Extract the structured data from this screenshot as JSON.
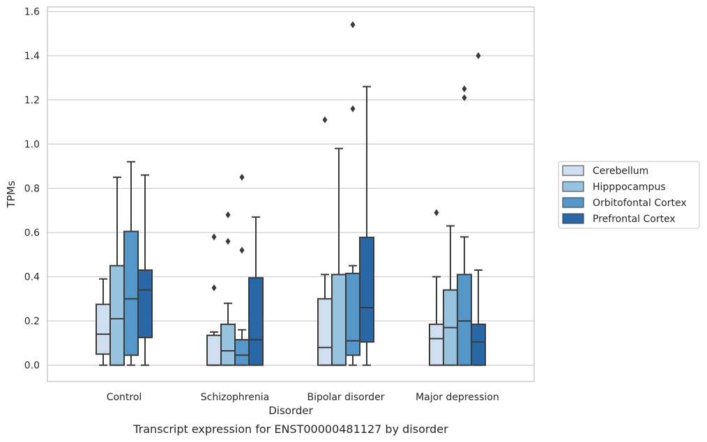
{
  "chart_data": {
    "type": "box",
    "title": "",
    "caption": "Transcript expression for ENST00000481127 by disorder",
    "xlabel": "Disorder",
    "ylabel": "TPMs",
    "ylim": [
      -0.075,
      1.62
    ],
    "yticks": [
      "0.0",
      "0.2",
      "0.4",
      "0.6",
      "0.8",
      "1.0",
      "1.2",
      "1.4",
      "1.6"
    ],
    "grid": "horizontal",
    "legend_position": "right",
    "categories": [
      "Control",
      "Schizophrenia",
      "Bipolar disorder",
      "Major depression"
    ],
    "series": [
      {
        "name": "Cerebellum",
        "color": "#d0dff0",
        "boxes": [
          {
            "whisker_low": 0.0,
            "q1": 0.05,
            "median": 0.14,
            "q3": 0.275,
            "whisker_high": 0.39,
            "outliers": []
          },
          {
            "whisker_low": 0.0,
            "q1": 0.0,
            "median": 0.0,
            "q3": 0.135,
            "whisker_high": 0.15,
            "outliers": [
              0.35,
              0.58
            ]
          },
          {
            "whisker_low": 0.0,
            "q1": 0.0,
            "median": 0.08,
            "q3": 0.3,
            "whisker_high": 0.41,
            "outliers": [
              1.11
            ]
          },
          {
            "whisker_low": 0.0,
            "q1": 0.0,
            "median": 0.12,
            "q3": 0.185,
            "whisker_high": 0.4,
            "outliers": [
              0.69
            ]
          }
        ]
      },
      {
        "name": "Hipppocampus",
        "color": "#97c3df",
        "boxes": [
          {
            "whisker_low": 0.0,
            "q1": 0.0,
            "median": 0.21,
            "q3": 0.45,
            "whisker_high": 0.85,
            "outliers": []
          },
          {
            "whisker_low": 0.0,
            "q1": 0.0,
            "median": 0.065,
            "q3": 0.185,
            "whisker_high": 0.28,
            "outliers": [
              0.56,
              0.68
            ]
          },
          {
            "whisker_low": 0.0,
            "q1": 0.0,
            "median": 0.0,
            "q3": 0.41,
            "whisker_high": 0.98,
            "outliers": []
          },
          {
            "whisker_low": 0.0,
            "q1": 0.0,
            "median": 0.17,
            "q3": 0.34,
            "whisker_high": 0.63,
            "outliers": []
          }
        ]
      },
      {
        "name": "Orbitofontal Cortex",
        "color": "#5597c8",
        "boxes": [
          {
            "whisker_low": 0.0,
            "q1": 0.045,
            "median": 0.3,
            "q3": 0.605,
            "whisker_high": 0.92,
            "outliers": []
          },
          {
            "whisker_low": 0.0,
            "q1": 0.0,
            "median": 0.045,
            "q3": 0.115,
            "whisker_high": 0.16,
            "outliers": [
              0.52,
              0.85
            ]
          },
          {
            "whisker_low": 0.0,
            "q1": 0.045,
            "median": 0.11,
            "q3": 0.415,
            "whisker_high": 0.45,
            "outliers": [
              1.16,
              1.54
            ]
          },
          {
            "whisker_low": 0.0,
            "q1": 0.0,
            "median": 0.2,
            "q3": 0.41,
            "whisker_high": 0.58,
            "outliers": [
              1.21,
              1.25
            ]
          }
        ]
      },
      {
        "name": "Prefrontal Cortex",
        "color": "#2a67a6",
        "boxes": [
          {
            "whisker_low": 0.0,
            "q1": 0.125,
            "median": 0.34,
            "q3": 0.43,
            "whisker_high": 0.86,
            "outliers": []
          },
          {
            "whisker_low": 0.0,
            "q1": 0.0,
            "median": 0.115,
            "q3": 0.395,
            "whisker_high": 0.67,
            "outliers": []
          },
          {
            "whisker_low": 0.0,
            "q1": 0.105,
            "median": 0.26,
            "q3": 0.578,
            "whisker_high": 1.26,
            "outliers": []
          },
          {
            "whisker_low": 0.0,
            "q1": 0.0,
            "median": 0.105,
            "q3": 0.185,
            "whisker_high": 0.43,
            "outliers": [
              1.4
            ]
          }
        ]
      }
    ]
  }
}
